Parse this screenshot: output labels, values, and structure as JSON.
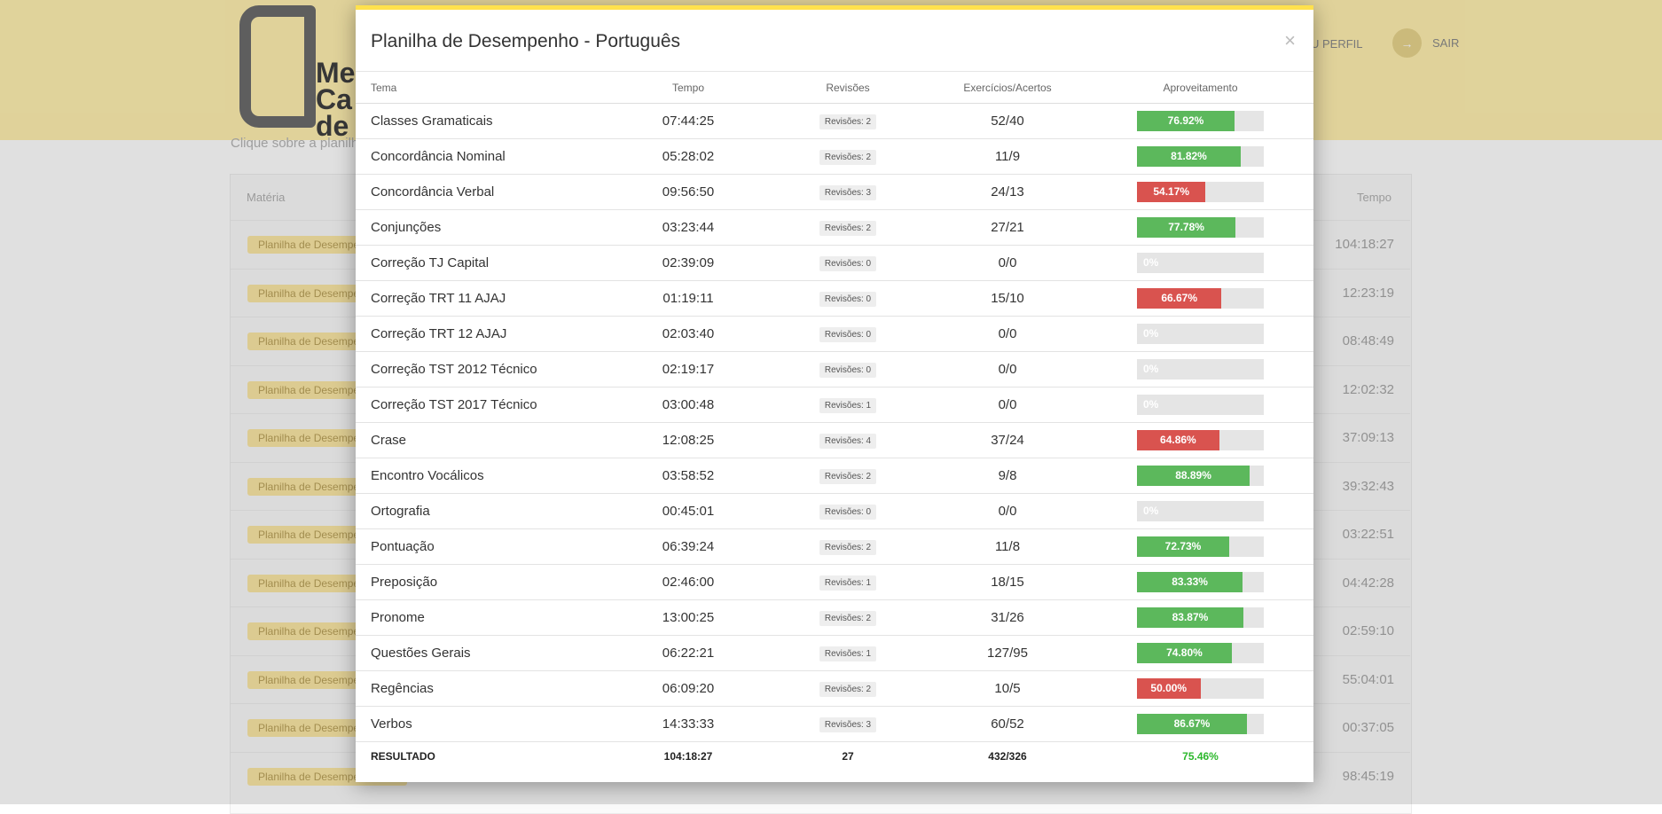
{
  "background": {
    "logo_letters": [
      "Me",
      "Ca",
      "de I"
    ],
    "nav": {
      "perfil": "U PERFIL",
      "sair": "SAIR"
    },
    "subtitle": "Clique sobre a planilh",
    "table_header": {
      "materia": "Matéria",
      "tempo": "Tempo"
    },
    "rows": [
      {
        "tag": "Planilha de Desempenho",
        "time": "104:18:27"
      },
      {
        "tag": "Planilha de Desempenho",
        "time": "12:23:19"
      },
      {
        "tag": "Planilha de Desempenho",
        "time": "08:48:49"
      },
      {
        "tag": "Planilha de Desempenho",
        "time": "12:02:32"
      },
      {
        "tag": "Planilha de Desempenho",
        "time": "37:09:13"
      },
      {
        "tag": "Planilha de Desempenho",
        "time": "39:32:43"
      },
      {
        "tag": "Planilha de Desempenho",
        "time": "03:22:51"
      },
      {
        "tag": "Planilha de Desempenho",
        "time": "04:42:28"
      },
      {
        "tag": "Planilha de Desempenho",
        "time": "02:59:10"
      },
      {
        "tag": "Planilha de Desempenho",
        "time": "55:04:01"
      },
      {
        "tag": "Planilha de Desempenho",
        "time": "00:37:05"
      },
      {
        "tag": "Planilha de Desempenho",
        "time": "98:45:19"
      }
    ]
  },
  "modal": {
    "title": "Planilha de Desempenho - Português",
    "close": "×",
    "headers": [
      "Tema",
      "Tempo",
      "Revisões",
      "Exercícios/Acertos",
      "Aproveitamento"
    ],
    "rows": [
      {
        "tema": "Classes Gramaticais",
        "tempo": "07:44:25",
        "revisoes": "Revisões: 2",
        "exercicios": "52/40",
        "percent": 76.92,
        "label": "76.92%",
        "color": "green"
      },
      {
        "tema": "Concordância Nominal",
        "tempo": "05:28:02",
        "revisoes": "Revisões: 2",
        "exercicios": "11/9",
        "percent": 81.82,
        "label": "81.82%",
        "color": "green"
      },
      {
        "tema": "Concordância Verbal",
        "tempo": "09:56:50",
        "revisoes": "Revisões: 3",
        "exercicios": "24/13",
        "percent": 54.17,
        "label": "54.17%",
        "color": "red"
      },
      {
        "tema": "Conjunções",
        "tempo": "03:23:44",
        "revisoes": "Revisões: 2",
        "exercicios": "27/21",
        "percent": 77.78,
        "label": "77.78%",
        "color": "green"
      },
      {
        "tema": "Correção TJ Capital",
        "tempo": "02:39:09",
        "revisoes": "Revisões: 0",
        "exercicios": "0/0",
        "percent": 0,
        "label": "0%",
        "color": "none"
      },
      {
        "tema": "Correção TRT 11 AJAJ",
        "tempo": "01:19:11",
        "revisoes": "Revisões: 0",
        "exercicios": "15/10",
        "percent": 66.67,
        "label": "66.67%",
        "color": "red"
      },
      {
        "tema": "Correção TRT 12 AJAJ",
        "tempo": "02:03:40",
        "revisoes": "Revisões: 0",
        "exercicios": "0/0",
        "percent": 0,
        "label": "0%",
        "color": "none"
      },
      {
        "tema": "Correção TST 2012 Técnico",
        "tempo": "02:19:17",
        "revisoes": "Revisões: 0",
        "exercicios": "0/0",
        "percent": 0,
        "label": "0%",
        "color": "none"
      },
      {
        "tema": "Correção TST 2017 Técnico",
        "tempo": "03:00:48",
        "revisoes": "Revisões: 1",
        "exercicios": "0/0",
        "percent": 0,
        "label": "0%",
        "color": "none"
      },
      {
        "tema": "Crase",
        "tempo": "12:08:25",
        "revisoes": "Revisões: 4",
        "exercicios": "37/24",
        "percent": 64.86,
        "label": "64.86%",
        "color": "red"
      },
      {
        "tema": "Encontro Vocálicos",
        "tempo": "03:58:52",
        "revisoes": "Revisões: 2",
        "exercicios": "9/8",
        "percent": 88.89,
        "label": "88.89%",
        "color": "green"
      },
      {
        "tema": "Ortografia",
        "tempo": "00:45:01",
        "revisoes": "Revisões: 0",
        "exercicios": "0/0",
        "percent": 0,
        "label": "0%",
        "color": "none"
      },
      {
        "tema": "Pontuação",
        "tempo": "06:39:24",
        "revisoes": "Revisões: 2",
        "exercicios": "11/8",
        "percent": 72.73,
        "label": "72.73%",
        "color": "green"
      },
      {
        "tema": "Preposição",
        "tempo": "02:46:00",
        "revisoes": "Revisões: 1",
        "exercicios": "18/15",
        "percent": 83.33,
        "label": "83.33%",
        "color": "green"
      },
      {
        "tema": "Pronome",
        "tempo": "13:00:25",
        "revisoes": "Revisões: 2",
        "exercicios": "31/26",
        "percent": 83.87,
        "label": "83.87%",
        "color": "green"
      },
      {
        "tema": "Questões Gerais",
        "tempo": "06:22:21",
        "revisoes": "Revisões: 1",
        "exercicios": "127/95",
        "percent": 74.8,
        "label": "74.80%",
        "color": "green"
      },
      {
        "tema": "Regências",
        "tempo": "06:09:20",
        "revisoes": "Revisões: 2",
        "exercicios": "10/5",
        "percent": 50.0,
        "label": "50.00%",
        "color": "red"
      },
      {
        "tema": "Verbos",
        "tempo": "14:33:33",
        "revisoes": "Revisões: 3",
        "exercicios": "60/52",
        "percent": 86.67,
        "label": "86.67%",
        "color": "green"
      }
    ],
    "total": {
      "label": "RESULTADO",
      "tempo": "104:18:27",
      "revisoes": "27",
      "exercicios": "432/326",
      "aproveitamento": "75.46%"
    }
  }
}
